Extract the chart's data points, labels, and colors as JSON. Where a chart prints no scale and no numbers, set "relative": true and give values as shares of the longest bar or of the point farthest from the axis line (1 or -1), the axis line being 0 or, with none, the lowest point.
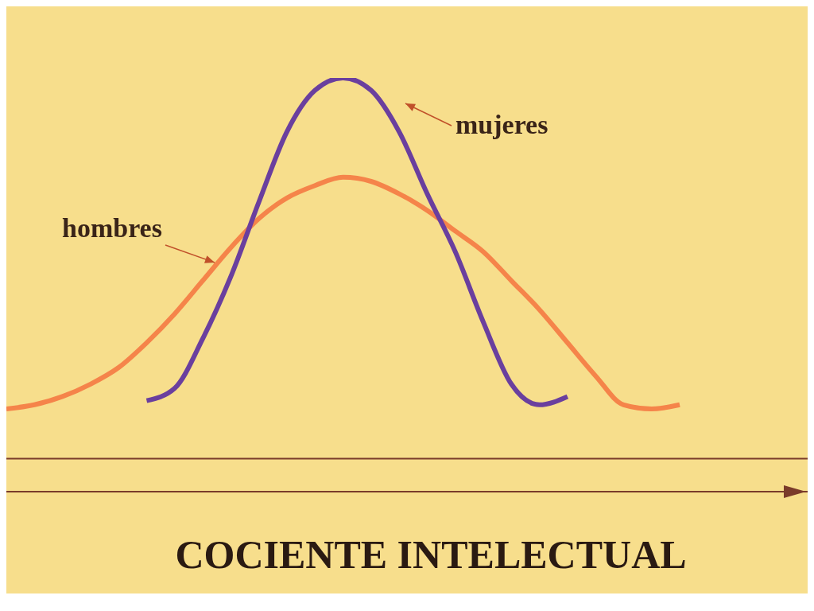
{
  "chart_data": {
    "type": "line",
    "relative": true,
    "xlabel": "COCIENTE INTELECTUAL",
    "categories": [
      null,
      null,
      null,
      null,
      null,
      null,
      null,
      null,
      null,
      null,
      null,
      null,
      null,
      null,
      null,
      null,
      null,
      null,
      null,
      null,
      null,
      null,
      null,
      null,
      null
    ],
    "series": [
      {
        "name": "hombres",
        "color": "#f5844a",
        "values": [
          0.2,
          0.21,
          0.23,
          0.26,
          0.3,
          0.36,
          0.43,
          0.51,
          0.59,
          0.66,
          0.71,
          0.74,
          0.76,
          0.75,
          0.72,
          0.68,
          0.63,
          0.58,
          0.51,
          0.44,
          0.36,
          0.28,
          0.21,
          0.2,
          0.21
        ]
      },
      {
        "name": "mujeres",
        "color": "#6a3f9e",
        "values": [
          null,
          null,
          null,
          null,
          null,
          0.22,
          0.25,
          0.37,
          0.52,
          0.7,
          0.87,
          0.97,
          1,
          0.97,
          0.87,
          0.72,
          0.58,
          0.41,
          0.26,
          0.21,
          0.23,
          null,
          null,
          null,
          null
        ]
      }
    ],
    "ref_lines": [
      {
        "axis": "y",
        "value": 0.08,
        "color": "#7a3b2a"
      }
    ],
    "marker": "none",
    "line_style": "solid"
  }
}
